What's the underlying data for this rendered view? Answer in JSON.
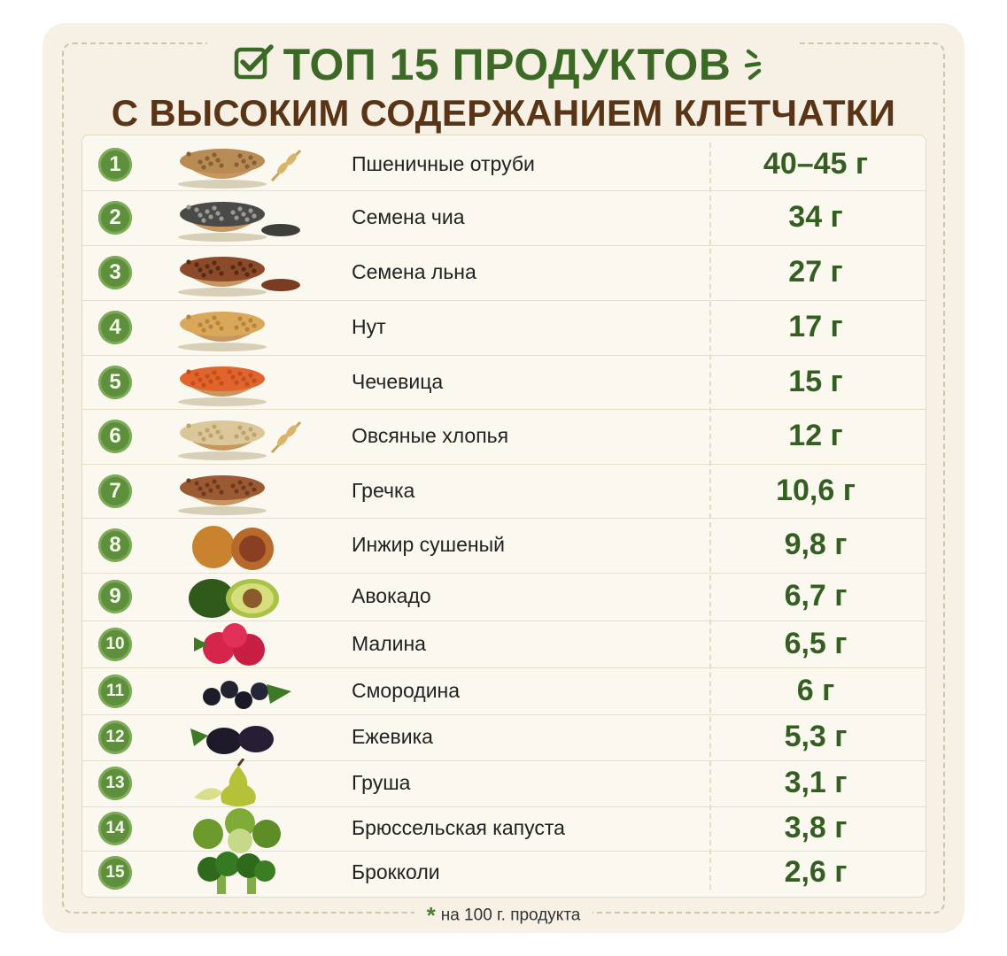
{
  "header": {
    "title_line1": "ТОП 15 ПРОДУКТОВ",
    "title_line2": "С ВЫСОКИМ СОДЕРЖАНИЕМ КЛЕТЧАТКИ"
  },
  "rows": [
    {
      "rank": "1",
      "name": "Пшеничные отруби",
      "value": "40–45 г",
      "image": "wheat-bran"
    },
    {
      "rank": "2",
      "name": "Семена чиа",
      "value": "34 г",
      "image": "chia-seeds"
    },
    {
      "rank": "3",
      "name": "Семена льна",
      "value": "27 г",
      "image": "flax-seeds"
    },
    {
      "rank": "4",
      "name": "Нут",
      "value": "17 г",
      "image": "chickpeas"
    },
    {
      "rank": "5",
      "name": "Чечевица",
      "value": "15 г",
      "image": "lentils"
    },
    {
      "rank": "6",
      "name": "Овсяные хлопья",
      "value": "12 г",
      "image": "oat-flakes"
    },
    {
      "rank": "7",
      "name": "Гречка",
      "value": "10,6 г",
      "image": "buckwheat"
    },
    {
      "rank": "8",
      "name": "Инжир сушеный",
      "value": "9,8 г",
      "image": "dried-figs"
    },
    {
      "rank": "9",
      "name": "Авокадо",
      "value": "6,7 г",
      "image": "avocado"
    },
    {
      "rank": "10",
      "name": "Малина",
      "value": "6,5 г",
      "image": "raspberry"
    },
    {
      "rank": "11",
      "name": "Смородина",
      "value": "6 г",
      "image": "blackcurrant"
    },
    {
      "rank": "12",
      "name": "Ежевика",
      "value": "5,3 г",
      "image": "blackberry"
    },
    {
      "rank": "13",
      "name": "Груша",
      "value": "3,1 г",
      "image": "pear"
    },
    {
      "rank": "14",
      "name": "Брюссельская капуста",
      "value": "3,8 г",
      "image": "brussels-sprouts"
    },
    {
      "rank": "15",
      "name": "Брокколи",
      "value": "2,6 г",
      "image": "broccoli"
    }
  ],
  "footnote": {
    "star": "*",
    "text": "на 100 г. продукта"
  },
  "colors": {
    "card_bg": "#f6f1e4",
    "accent_green": "#3c6a26",
    "title_brown": "#5a3417",
    "badge_green": "#5e8f3c"
  }
}
